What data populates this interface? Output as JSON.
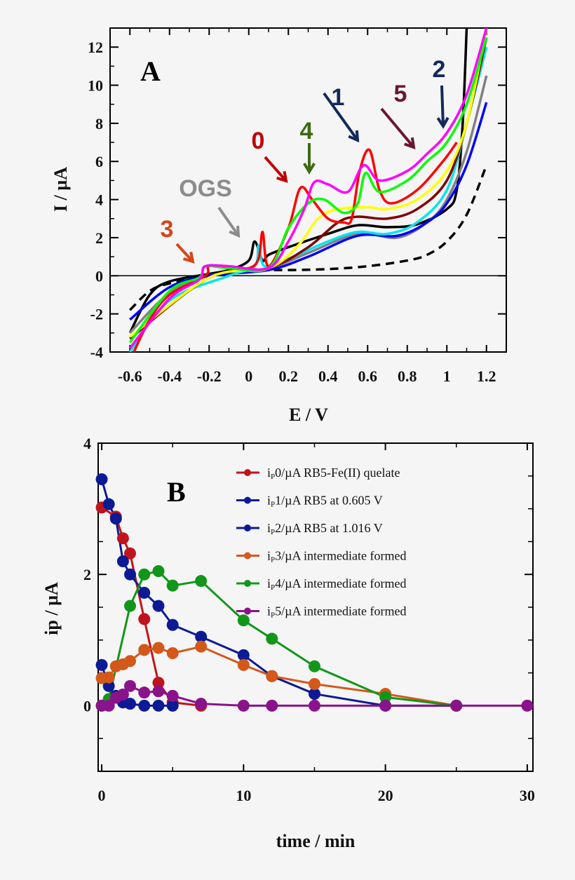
{
  "chart_data": [
    {
      "type": "line",
      "panel_label": "A",
      "xlabel": "E / V",
      "ylabel": "I / µA",
      "xlim": [
        -0.7,
        1.3
      ],
      "ylim": [
        -4,
        13
      ],
      "xticks": [
        "-0.6",
        "-0.4",
        "-0.2",
        "0",
        "0.2",
        "0.4",
        "0.6",
        "0.8",
        "1",
        "1.2"
      ],
      "xtick_values": [
        -0.6,
        -0.4,
        -0.2,
        0,
        0.2,
        0.4,
        0.6,
        0.8,
        1,
        1.2
      ],
      "yticks": [
        "-4",
        "-2",
        "0",
        "2",
        "4",
        "6",
        "8",
        "10",
        "12"
      ],
      "ytick_values": [
        -4,
        -2,
        0,
        2,
        4,
        6,
        8,
        10,
        12
      ],
      "grid": false,
      "annotations": [
        {
          "text": "OGS",
          "color": "#8c8c8c"
        },
        {
          "text": "3",
          "color": "#d4461a"
        },
        {
          "text": "0",
          "color": "#c00000"
        },
        {
          "text": "4",
          "color": "#3d6b12"
        },
        {
          "text": "1",
          "color": "#12295a"
        },
        {
          "text": "5",
          "color": "#6b1535"
        },
        {
          "text": "2",
          "color": "#12295a"
        }
      ],
      "series": [
        {
          "color": "#000000",
          "dashed": true,
          "points": [
            [
              -0.6,
              -1.8
            ],
            [
              -0.5,
              -0.8
            ],
            [
              -0.4,
              -0.4
            ],
            [
              -0.2,
              0
            ],
            [
              0,
              0.2
            ],
            [
              0.1,
              0.3
            ],
            [
              0.2,
              0.3
            ],
            [
              0.4,
              0.35
            ],
            [
              0.6,
              0.5
            ],
            [
              0.8,
              0.8
            ],
            [
              0.9,
              1.1
            ],
            [
              1.0,
              1.8
            ],
            [
              1.1,
              3.2
            ],
            [
              1.2,
              5.8
            ]
          ]
        },
        {
          "color": "#000000",
          "points": [
            [
              -0.6,
              -3
            ],
            [
              -0.5,
              -1
            ],
            [
              -0.4,
              -0.3
            ],
            [
              -0.2,
              0.1
            ],
            [
              -0.1,
              0.3
            ],
            [
              0,
              0.8
            ],
            [
              0.03,
              1.8
            ],
            [
              0.07,
              0.8
            ],
            [
              0.1,
              1.1
            ],
            [
              0.2,
              1.5
            ],
            [
              0.4,
              2.2
            ],
            [
              0.55,
              2.65
            ],
            [
              0.7,
              2.55
            ],
            [
              0.85,
              2.7
            ],
            [
              1.0,
              3.5
            ],
            [
              1.05,
              4.5
            ],
            [
              1.08,
              8
            ],
            [
              1.1,
              13
            ]
          ]
        },
        {
          "color": "#808080",
          "points": [
            [
              -0.6,
              -3
            ],
            [
              -0.4,
              -0.9
            ],
            [
              -0.2,
              0
            ],
            [
              0.1,
              0.4
            ],
            [
              0.3,
              1.2
            ],
            [
              0.55,
              2.2
            ],
            [
              0.75,
              2.0
            ],
            [
              0.9,
              2.8
            ],
            [
              1.0,
              4.0
            ],
            [
              1.1,
              6.5
            ],
            [
              1.2,
              10.5
            ]
          ]
        },
        {
          "color": "#0000ff",
          "points": [
            [
              -0.6,
              -2.3
            ],
            [
              -0.4,
              -0.6
            ],
            [
              -0.2,
              0
            ],
            [
              0.1,
              0.3
            ],
            [
              0.3,
              1.0
            ],
            [
              0.55,
              2.1
            ],
            [
              0.75,
              2.1
            ],
            [
              0.9,
              2.8
            ],
            [
              1.0,
              3.8
            ],
            [
              1.1,
              5.8
            ],
            [
              1.2,
              9.1
            ]
          ]
        },
        {
          "color": "#00e5ee",
          "points": [
            [
              -0.6,
              -4
            ],
            [
              -0.4,
              -1.3
            ],
            [
              -0.1,
              0
            ],
            [
              0.03,
              0.5
            ],
            [
              0.05,
              1.6
            ],
            [
              0.08,
              0.5
            ],
            [
              0.2,
              0.9
            ],
            [
              0.4,
              1.8
            ],
            [
              0.55,
              2.3
            ],
            [
              0.7,
              2.2
            ],
            [
              0.85,
              2.8
            ],
            [
              1.0,
              4.5
            ],
            [
              1.1,
              8
            ],
            [
              1.2,
              12
            ]
          ]
        },
        {
          "color": "#800000",
          "points": [
            [
              -0.6,
              -3.3
            ],
            [
              -0.2,
              -0.1
            ],
            [
              0.1,
              0.4
            ],
            [
              0.3,
              1.5
            ],
            [
              0.45,
              2.8
            ],
            [
              0.55,
              3.1
            ],
            [
              0.7,
              3.0
            ],
            [
              0.85,
              3.5
            ],
            [
              1.0,
              5
            ],
            [
              1.1,
              8
            ],
            [
              1.2,
              12.5
            ]
          ]
        },
        {
          "color": "#ffff00",
          "points": [
            [
              -0.6,
              -3.2
            ],
            [
              -0.2,
              -0.1
            ],
            [
              0.1,
              0.4
            ],
            [
              0.25,
              1.6
            ],
            [
              0.35,
              3.0
            ],
            [
              0.45,
              3.5
            ],
            [
              0.6,
              3.6
            ],
            [
              0.7,
              3.5
            ],
            [
              0.85,
              4
            ],
            [
              1.0,
              5.5
            ],
            [
              1.1,
              8
            ],
            [
              1.2,
              13
            ]
          ]
        },
        {
          "color": "#ff0000",
          "points": [
            [
              -0.58,
              -4
            ],
            [
              -0.5,
              -2.3
            ],
            [
              -0.4,
              -1
            ],
            [
              -0.22,
              0
            ],
            [
              -0.2,
              0.5
            ],
            [
              -0.1,
              0.5
            ],
            [
              0.0,
              0.4
            ],
            [
              0.05,
              0.9
            ],
            [
              0.07,
              2.3
            ],
            [
              0.1,
              0.5
            ],
            [
              0.2,
              2.5
            ],
            [
              0.26,
              4.6
            ],
            [
              0.32,
              4.0
            ],
            [
              0.4,
              3.0
            ],
            [
              0.48,
              2.8
            ],
            [
              0.52,
              3.0
            ],
            [
              0.56,
              5.5
            ],
            [
              0.61,
              6.6
            ],
            [
              0.66,
              4.5
            ],
            [
              0.72,
              3.8
            ],
            [
              0.85,
              4.5
            ],
            [
              0.98,
              6.0
            ],
            [
              1.05,
              7.0
            ]
          ]
        },
        {
          "color": "#00ff00",
          "points": [
            [
              -0.6,
              -3.5
            ],
            [
              -0.4,
              -0.8
            ],
            [
              -0.25,
              -0.1
            ],
            [
              -0.22,
              0.5
            ],
            [
              -0.1,
              0.4
            ],
            [
              0.1,
              0.4
            ],
            [
              0.2,
              2.5
            ],
            [
              0.3,
              3.8
            ],
            [
              0.38,
              4.0
            ],
            [
              0.48,
              3.3
            ],
            [
              0.55,
              3.8
            ],
            [
              0.59,
              5.4
            ],
            [
              0.66,
              4.4
            ],
            [
              0.8,
              5.0
            ],
            [
              0.9,
              6.0
            ],
            [
              1.0,
              7.0
            ],
            [
              1.1,
              9
            ],
            [
              1.2,
              12.5
            ]
          ]
        },
        {
          "color": "#ff00ff",
          "points": [
            [
              -0.6,
              -3.8
            ],
            [
              -0.4,
              -1.2
            ],
            [
              -0.25,
              -0.2
            ],
            [
              -0.22,
              0.5
            ],
            [
              -0.1,
              0.5
            ],
            [
              0.1,
              0.4
            ],
            [
              0.2,
              1.8
            ],
            [
              0.28,
              3.5
            ],
            [
              0.33,
              4.9
            ],
            [
              0.4,
              4.8
            ],
            [
              0.5,
              4.4
            ],
            [
              0.58,
              5.8
            ],
            [
              0.66,
              5.0
            ],
            [
              0.8,
              5.5
            ],
            [
              0.9,
              6.4
            ],
            [
              1.0,
              7.5
            ],
            [
              1.1,
              9.5
            ],
            [
              1.2,
              13
            ]
          ]
        }
      ]
    },
    {
      "type": "line",
      "panel_label": "B",
      "xlabel": "time / min",
      "ylabel": "ip / µA",
      "xlim": [
        -0.25,
        30.4
      ],
      "ylim": [
        -1,
        4
      ],
      "xticks": [
        "0",
        "10",
        "20",
        "30"
      ],
      "xtick_values": [
        0,
        10,
        20,
        30
      ],
      "yticks": [
        "0",
        "2",
        "4"
      ],
      "ytick_values": [
        0,
        2,
        4
      ],
      "grid": false,
      "legend_position": "top-right",
      "series": [
        {
          "name": "ip0/µA RB5-Fe(II) quelate",
          "sub": "P",
          "prefix": "i",
          "rest": "0/µA RB5-Fe(II) quelate",
          "color": "#c0141c",
          "x": [
            0,
            1,
            1.5,
            2,
            3,
            4,
            5,
            7
          ],
          "y": [
            3.02,
            2.88,
            2.55,
            2.32,
            1.32,
            0.35,
            0.05,
            0
          ]
        },
        {
          "name": "ip1/µA RB5 at 0.605 V",
          "prefix": "i",
          "sub": "P",
          "rest": "1/µA RB5 at 0.605 V",
          "color": "#0c1a96",
          "x": [
            0,
            0.5,
            1,
            1.5,
            2,
            3,
            4,
            5,
            7,
            10,
            12,
            15,
            20,
            25
          ],
          "y": [
            3.45,
            3.07,
            2.85,
            2.2,
            2.0,
            1.72,
            1.52,
            1.23,
            1.05,
            0.77,
            0.45,
            0.18,
            0,
            0
          ]
        },
        {
          "name": "ip2/µA RB5 at 1.016 V",
          "prefix": "i",
          "sub": "P",
          "rest": "2/µA RB5 at 1.016 V",
          "color": "#0c1a96",
          "x": [
            0,
            0.5,
            1,
            1.5,
            2,
            3,
            4,
            5
          ],
          "y": [
            0.62,
            0.3,
            0.15,
            0.05,
            0.03,
            0,
            0,
            0
          ]
        },
        {
          "name": "ip3/µA intermediate formed",
          "prefix": "i",
          "sub": "P",
          "rest": "3/µA intermediate formed",
          "color": "#d4581a",
          "x": [
            0,
            0.5,
            1,
            1.5,
            2,
            3,
            4,
            5,
            7,
            10,
            12,
            15,
            20,
            25
          ],
          "y": [
            0.42,
            0.43,
            0.6,
            0.63,
            0.68,
            0.85,
            0.88,
            0.8,
            0.9,
            0.62,
            0.45,
            0.33,
            0.18,
            0
          ]
        },
        {
          "name": "ip4/µA intermediate formed",
          "prefix": "i",
          "sub": "P",
          "rest": "4/µA intermediate formed",
          "color": "#12961a",
          "x": [
            0,
            0.5,
            2,
            3,
            4,
            5,
            7,
            10,
            12,
            15,
            20,
            25
          ],
          "y": [
            0,
            0.1,
            1.52,
            2.0,
            2.05,
            1.83,
            1.9,
            1.3,
            1.02,
            0.6,
            0.13,
            0
          ]
        },
        {
          "name": "ip5/µA intermediate formed",
          "prefix": "i",
          "sub": "P",
          "rest": "5/µA intermediate formed",
          "color": "#8a128a",
          "x": [
            0,
            0.5,
            1,
            1.5,
            2,
            3,
            4,
            5,
            7,
            10,
            12,
            15,
            20,
            25,
            30
          ],
          "y": [
            0,
            0,
            0.12,
            0.17,
            0.3,
            0.2,
            0.22,
            0.15,
            0.03,
            0,
            0,
            0,
            0,
            0,
            0
          ]
        }
      ]
    }
  ]
}
